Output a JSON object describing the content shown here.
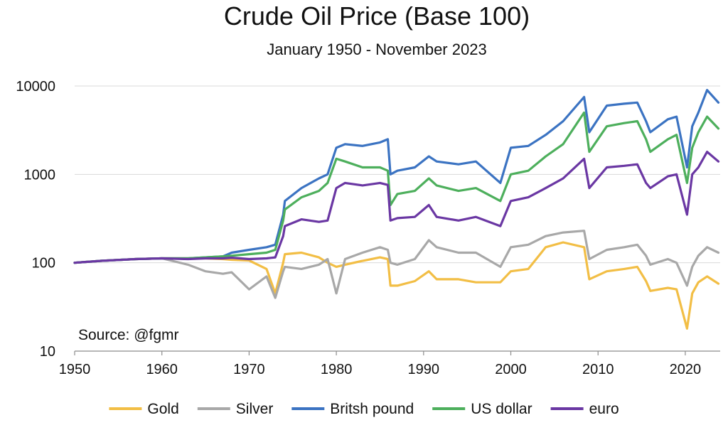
{
  "chart_data": {
    "type": "line",
    "title": "Crude Oil Price (Base 100)",
    "subtitle": "January 1950 - November 2023",
    "annotation": "Source: @fgmr",
    "yscale": "log",
    "ylim": [
      10,
      10000
    ],
    "yticks": [
      "10",
      "100",
      "1000",
      "10000"
    ],
    "ytick_values": [
      10,
      100,
      1000,
      10000
    ],
    "xlim": [
      1950,
      2024
    ],
    "xticks": [
      "1950",
      "1960",
      "1970",
      "1980",
      "1990",
      "2000",
      "2010",
      "2020"
    ],
    "xtick_values": [
      1950,
      1960,
      1970,
      1980,
      1990,
      2000,
      2010,
      2020
    ],
    "grid": "horizontal",
    "legend_position": "bottom",
    "x": [
      1950,
      1953,
      1957,
      1960,
      1963,
      1965,
      1967,
      1968,
      1970,
      1972,
      1973,
      1973.9,
      1974.1,
      1976,
      1978,
      1979,
      1980,
      1981,
      1983,
      1985,
      1985.9,
      1986.2,
      1987,
      1989,
      1990.6,
      1991.5,
      1994,
      1996,
      1998.8,
      2000,
      2002,
      2004,
      2006,
      2008.4,
      2009,
      2011,
      2013,
      2014.5,
      2015.5,
      2016,
      2018,
      2019,
      2020.2,
      2020.8,
      2021.5,
      2022.5,
      2023.8
    ],
    "series": [
      {
        "name": "Gold",
        "color": "#F2BE45",
        "values": [
          100,
          105,
          110,
          112,
          112,
          112,
          110,
          108,
          106,
          85,
          45,
          100,
          125,
          130,
          115,
          100,
          90,
          95,
          105,
          115,
          110,
          55,
          55,
          62,
          80,
          65,
          65,
          60,
          60,
          80,
          85,
          150,
          170,
          150,
          65,
          80,
          85,
          90,
          62,
          48,
          52,
          50,
          18,
          45,
          60,
          70,
          58
        ]
      },
      {
        "name": "Silver",
        "color": "#A8A8A8",
        "values": [
          100,
          105,
          110,
          112,
          95,
          80,
          75,
          78,
          50,
          70,
          40,
          80,
          90,
          85,
          95,
          110,
          45,
          110,
          130,
          150,
          140,
          100,
          95,
          110,
          180,
          150,
          130,
          130,
          90,
          150,
          160,
          200,
          220,
          230,
          110,
          140,
          150,
          160,
          120,
          95,
          110,
          100,
          55,
          90,
          120,
          150,
          130
        ]
      },
      {
        "name": "Britsh pound",
        "color": "#3B73C2",
        "values": [
          100,
          105,
          110,
          112,
          112,
          115,
          118,
          130,
          140,
          150,
          160,
          350,
          500,
          700,
          900,
          1000,
          2000,
          2200,
          2100,
          2300,
          2500,
          1000,
          1100,
          1200,
          1600,
          1400,
          1300,
          1400,
          800,
          2000,
          2100,
          2800,
          4000,
          7500,
          3000,
          6000,
          6300,
          6500,
          4000,
          3000,
          4200,
          4500,
          1200,
          3500,
          5000,
          9000,
          6500
        ]
      },
      {
        "name": "US dollar",
        "color": "#4DAF5C",
        "values": [
          100,
          105,
          110,
          112,
          112,
          115,
          118,
          120,
          125,
          130,
          140,
          300,
          400,
          550,
          650,
          800,
          1500,
          1400,
          1200,
          1200,
          1100,
          450,
          600,
          650,
          900,
          750,
          650,
          700,
          500,
          1000,
          1100,
          1600,
          2200,
          5000,
          1800,
          3500,
          3800,
          4000,
          2500,
          1800,
          2500,
          2800,
          800,
          2000,
          3000,
          4500,
          3300
        ]
      },
      {
        "name": "euro",
        "color": "#6A37A3",
        "values": [
          100,
          105,
          110,
          112,
          110,
          112,
          112,
          114,
          110,
          112,
          115,
          200,
          260,
          310,
          290,
          300,
          700,
          800,
          750,
          800,
          760,
          300,
          320,
          330,
          450,
          330,
          300,
          330,
          260,
          500,
          550,
          700,
          900,
          1500,
          700,
          1200,
          1250,
          1300,
          800,
          700,
          950,
          1000,
          350,
          1000,
          1200,
          1800,
          1400
        ]
      }
    ]
  }
}
